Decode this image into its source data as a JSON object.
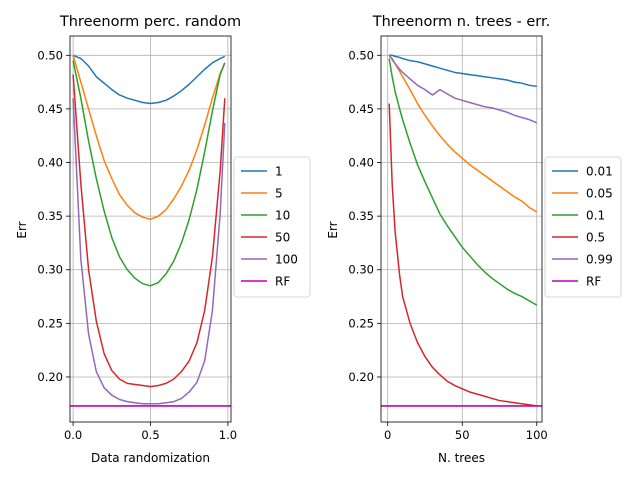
{
  "chart_data": [
    {
      "type": "line",
      "title": "Threenorm perc. random",
      "xlabel": "Data randomization",
      "ylabel": "Err",
      "xlim": [
        -0.02,
        1.02
      ],
      "ylim": [
        0.158,
        0.518
      ],
      "xticks": [
        0.0,
        0.5,
        1.0
      ],
      "xtick_labels": [
        "0.0",
        "0.5",
        "1.0"
      ],
      "yticks": [
        0.2,
        0.25,
        0.3,
        0.35,
        0.4,
        0.45,
        0.5
      ],
      "ytick_labels": [
        "0.20",
        "0.25",
        "0.30",
        "0.35",
        "0.40",
        "0.45",
        "0.50"
      ],
      "grid": true,
      "legend": "outside-right",
      "x": [
        0.0,
        0.05,
        0.1,
        0.15,
        0.2,
        0.25,
        0.3,
        0.35,
        0.4,
        0.45,
        0.5,
        0.55,
        0.6,
        0.65,
        0.7,
        0.75,
        0.8,
        0.85,
        0.9,
        0.95,
        0.98
      ],
      "series": [
        {
          "name": "1",
          "color": "#1f77b4",
          "values": [
            0.5,
            0.497,
            0.49,
            0.48,
            0.474,
            0.468,
            0.463,
            0.46,
            0.458,
            0.456,
            0.455,
            0.456,
            0.458,
            0.462,
            0.467,
            0.473,
            0.48,
            0.487,
            0.493,
            0.497,
            0.499
          ]
        },
        {
          "name": "5",
          "color": "#ff7f0e",
          "values": [
            0.5,
            0.475,
            0.45,
            0.425,
            0.402,
            0.385,
            0.37,
            0.36,
            0.353,
            0.349,
            0.347,
            0.35,
            0.356,
            0.366,
            0.378,
            0.393,
            0.412,
            0.435,
            0.46,
            0.483,
            0.493
          ]
        },
        {
          "name": "10",
          "color": "#2ca02c",
          "values": [
            0.495,
            0.46,
            0.42,
            0.385,
            0.355,
            0.33,
            0.312,
            0.3,
            0.292,
            0.287,
            0.285,
            0.288,
            0.296,
            0.308,
            0.325,
            0.347,
            0.375,
            0.41,
            0.448,
            0.482,
            0.493
          ]
        },
        {
          "name": "50",
          "color": "#d62728",
          "values": [
            0.482,
            0.38,
            0.3,
            0.252,
            0.222,
            0.206,
            0.198,
            0.194,
            0.193,
            0.192,
            0.191,
            0.192,
            0.194,
            0.198,
            0.205,
            0.215,
            0.232,
            0.262,
            0.312,
            0.392,
            0.46
          ]
        },
        {
          "name": "100",
          "color": "#9467bd",
          "values": [
            0.46,
            0.31,
            0.24,
            0.205,
            0.19,
            0.183,
            0.179,
            0.177,
            0.176,
            0.175,
            0.175,
            0.175,
            0.176,
            0.177,
            0.18,
            0.186,
            0.195,
            0.215,
            0.262,
            0.352,
            0.437
          ]
        },
        {
          "name": "RF",
          "color": "#c000c0",
          "values": [
            0.173,
            0.173,
            0.173,
            0.173,
            0.173,
            0.173,
            0.173,
            0.173,
            0.173,
            0.173,
            0.173,
            0.173,
            0.173,
            0.173,
            0.173,
            0.173,
            0.173,
            0.173,
            0.173,
            0.173,
            0.173
          ]
        }
      ]
    },
    {
      "type": "line",
      "title": "Threenorm n. trees - err.",
      "xlabel": "N. trees",
      "ylabel": "Err",
      "xlim": [
        -4.5,
        103.5
      ],
      "ylim": [
        0.158,
        0.518
      ],
      "xticks": [
        0,
        50,
        100
      ],
      "xtick_labels": [
        "0",
        "50",
        "100"
      ],
      "yticks": [
        0.2,
        0.25,
        0.3,
        0.35,
        0.4,
        0.45,
        0.5
      ],
      "ytick_labels": [
        "0.20",
        "0.25",
        "0.30",
        "0.35",
        "0.40",
        "0.45",
        "0.50"
      ],
      "grid": true,
      "legend": "outside-right",
      "x": [
        1,
        3,
        5,
        8,
        10,
        15,
        20,
        25,
        30,
        35,
        40,
        45,
        50,
        55,
        60,
        65,
        70,
        75,
        80,
        85,
        90,
        95,
        100
      ],
      "series": [
        {
          "name": "0.01",
          "color": "#1f77b4",
          "values": [
            0.5,
            0.5,
            0.499,
            0.498,
            0.497,
            0.495,
            0.494,
            0.492,
            0.49,
            0.488,
            0.486,
            0.484,
            0.483,
            0.482,
            0.481,
            0.48,
            0.479,
            0.478,
            0.477,
            0.475,
            0.474,
            0.472,
            0.471
          ]
        },
        {
          "name": "0.05",
          "color": "#ff7f0e",
          "values": [
            0.5,
            0.497,
            0.492,
            0.485,
            0.48,
            0.468,
            0.455,
            0.444,
            0.434,
            0.425,
            0.417,
            0.41,
            0.404,
            0.398,
            0.393,
            0.388,
            0.383,
            0.378,
            0.373,
            0.368,
            0.364,
            0.358,
            0.354
          ]
        },
        {
          "name": "0.1",
          "color": "#2ca02c",
          "values": [
            0.497,
            0.48,
            0.466,
            0.45,
            0.44,
            0.418,
            0.398,
            0.382,
            0.367,
            0.352,
            0.341,
            0.331,
            0.321,
            0.313,
            0.305,
            0.298,
            0.292,
            0.287,
            0.282,
            0.278,
            0.275,
            0.271,
            0.267
          ]
        },
        {
          "name": "0.5",
          "color": "#d62728",
          "values": [
            0.455,
            0.38,
            0.335,
            0.295,
            0.275,
            0.25,
            0.232,
            0.219,
            0.209,
            0.202,
            0.196,
            0.192,
            0.189,
            0.186,
            0.184,
            0.182,
            0.18,
            0.178,
            0.177,
            0.176,
            0.175,
            0.174,
            0.173
          ]
        },
        {
          "name": "0.99",
          "color": "#9467bd",
          "values": [
            0.5,
            0.496,
            0.492,
            0.487,
            0.484,
            0.478,
            0.472,
            0.468,
            0.463,
            0.468,
            0.464,
            0.46,
            0.458,
            0.456,
            0.454,
            0.452,
            0.451,
            0.449,
            0.447,
            0.444,
            0.442,
            0.44,
            0.437
          ]
        },
        {
          "name": "RF",
          "color": "#c000c0",
          "values": [
            0.173,
            0.173,
            0.173,
            0.173,
            0.173,
            0.173,
            0.173,
            0.173,
            0.173,
            0.173,
            0.173,
            0.173,
            0.173,
            0.173,
            0.173,
            0.173,
            0.173,
            0.173,
            0.173,
            0.173,
            0.173,
            0.173,
            0.173
          ]
        }
      ]
    }
  ]
}
